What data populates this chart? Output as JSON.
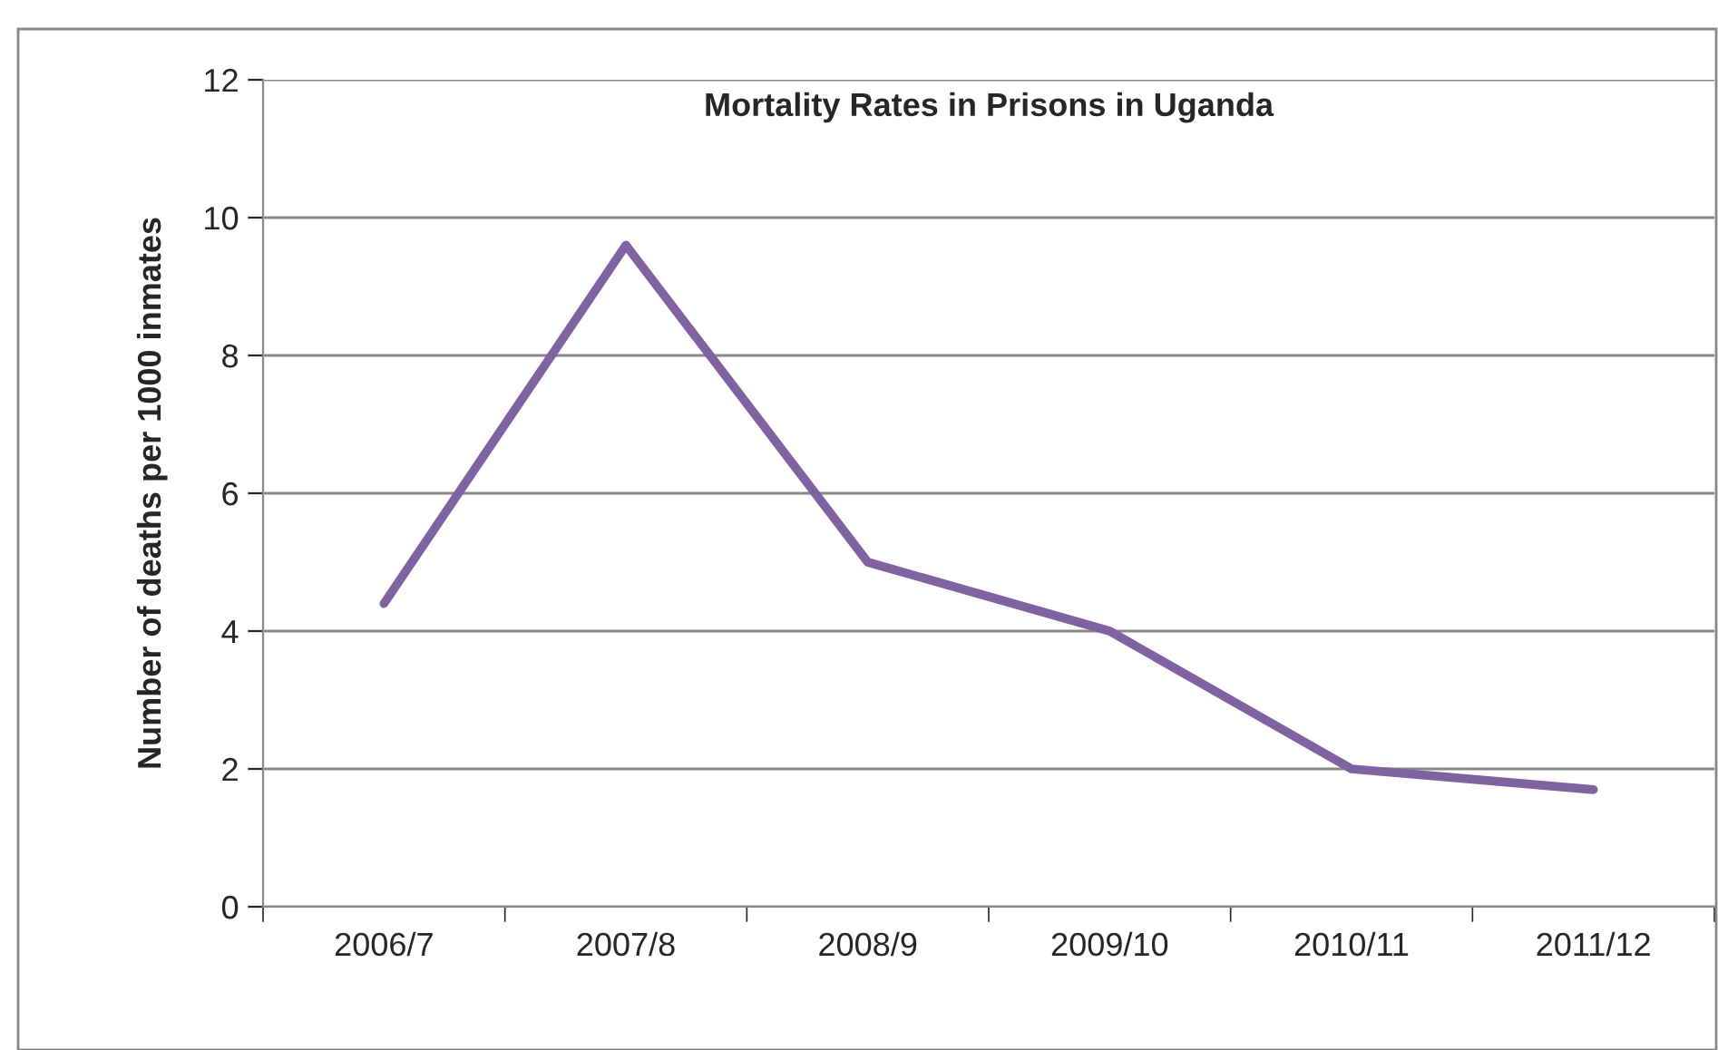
{
  "chart_data": {
    "type": "line",
    "title": "Mortality Rates in Prisons in Uganda",
    "ylabel": "Number of deaths per 1000 inmates",
    "categories": [
      "2006/7",
      "2007/8",
      "2008/9",
      "2009/10",
      "2010/11",
      "2011/12"
    ],
    "series": [
      {
        "color": "#7f63a1",
        "values": [
          4.4,
          9.6,
          5.0,
          4.0,
          2.0,
          1.7
        ]
      }
    ],
    "ylim": [
      0,
      12
    ],
    "yticks": [
      0,
      2,
      4,
      6,
      8,
      10,
      12
    ],
    "grid": "y",
    "legend": false,
    "marker": "none",
    "line_style": "solid"
  }
}
